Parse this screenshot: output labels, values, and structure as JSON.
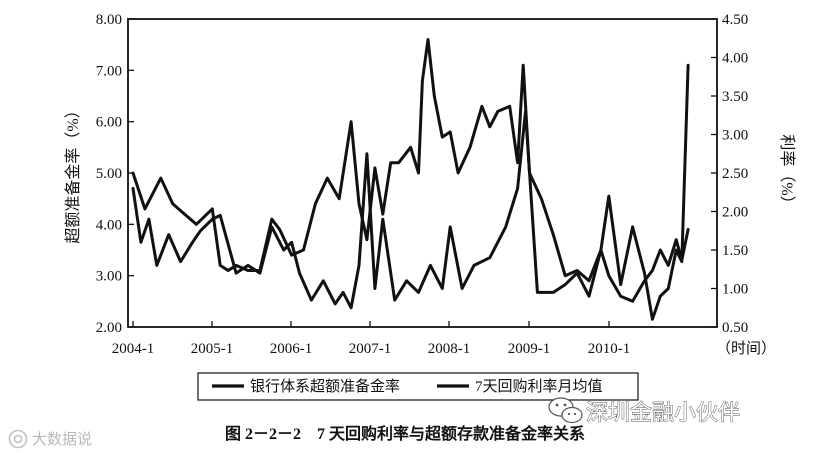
{
  "chart_data": {
    "type": "line",
    "caption": "图 2－2－2　7 天回购利率与超额存款准备金率关系",
    "ylabel": "超额准备金率（%）",
    "y2label": "利率（%）",
    "xlabel": "（时间）",
    "ylim": [
      2.0,
      8.0
    ],
    "y2lim": [
      0.5,
      4.5
    ],
    "y_ticks": [
      "2.00",
      "3.00",
      "4.00",
      "5.00",
      "6.00",
      "7.00",
      "8.00"
    ],
    "y2_ticks": [
      "0.50",
      "1.00",
      "1.50",
      "2.00",
      "2.50",
      "3.00",
      "3.50",
      "4.00",
      "4.50"
    ],
    "x_ticks": [
      "2004-1",
      "2005-1",
      "2006-1",
      "2007-1",
      "2008-1",
      "2009-1",
      "2010-1"
    ],
    "legend": {
      "position": "bottom"
    },
    "series": [
      {
        "name": "银行体系超额准备金率",
        "axis": "left",
        "x": [
          2004.0,
          2004.15,
          2004.35,
          2004.5,
          2004.65,
          2004.8,
          2005.0,
          2005.1,
          2005.2,
          2005.3,
          2005.45,
          2005.6,
          2005.75,
          2005.85,
          2006.0,
          2006.15,
          2006.3,
          2006.45,
          2006.6,
          2006.75,
          2006.85,
          2006.95,
          2007.05,
          2007.15,
          2007.25,
          2007.35,
          2007.5,
          2007.6,
          2007.65,
          2007.72,
          2007.8,
          2007.9,
          2008.0,
          2008.1,
          2008.25,
          2008.4,
          2008.5,
          2008.6,
          2008.75,
          2008.85,
          2008.92,
          2009.0,
          2009.15,
          2009.3,
          2009.45,
          2009.6,
          2009.75,
          2009.9,
          2010.0,
          2010.15,
          2010.3,
          2010.45,
          2010.55,
          2010.65,
          2010.75,
          2010.85,
          2010.92,
          2011.0
        ],
        "values": [
          5.0,
          4.3,
          4.9,
          4.4,
          4.2,
          4.0,
          4.3,
          3.2,
          3.1,
          3.2,
          3.1,
          3.1,
          4.1,
          3.9,
          3.4,
          3.5,
          4.4,
          4.9,
          4.5,
          6.0,
          4.4,
          3.7,
          5.1,
          4.2,
          5.2,
          5.2,
          5.5,
          5.0,
          6.8,
          7.6,
          6.5,
          5.7,
          5.8,
          5.0,
          5.5,
          6.3,
          5.9,
          6.2,
          6.3,
          5.2,
          7.1,
          5.0,
          4.5,
          3.8,
          3.0,
          3.1,
          2.9,
          3.5,
          3.0,
          2.6,
          2.5,
          2.9,
          3.1,
          3.5,
          3.2,
          3.7,
          3.3,
          3.9
        ]
      },
      {
        "name": "7天回购利率月均值",
        "axis": "right",
        "x": [
          2004.0,
          2004.1,
          2004.2,
          2004.3,
          2004.45,
          2004.6,
          2004.75,
          2004.85,
          2005.0,
          2005.1,
          2005.3,
          2005.45,
          2005.6,
          2005.75,
          2005.9,
          2006.0,
          2006.1,
          2006.25,
          2006.4,
          2006.55,
          2006.65,
          2006.75,
          2006.85,
          2006.95,
          2007.05,
          2007.15,
          2007.3,
          2007.45,
          2007.6,
          2007.75,
          2007.9,
          2008.0,
          2008.15,
          2008.3,
          2008.5,
          2008.7,
          2008.85,
          2008.95,
          2009.1,
          2009.3,
          2009.45,
          2009.6,
          2009.75,
          2009.9,
          2010.0,
          2010.15,
          2010.3,
          2010.45,
          2010.55,
          2010.65,
          2010.75,
          2010.85,
          2010.92,
          2011.0
        ],
        "values": [
          2.3,
          1.6,
          1.9,
          1.3,
          1.7,
          1.35,
          1.6,
          1.75,
          1.9,
          1.95,
          1.2,
          1.3,
          1.2,
          1.8,
          1.5,
          1.6,
          1.2,
          0.85,
          1.1,
          0.8,
          0.95,
          0.75,
          1.3,
          2.75,
          1.0,
          1.9,
          0.85,
          1.1,
          0.95,
          1.3,
          1.0,
          1.8,
          1.0,
          1.3,
          1.4,
          1.8,
          2.3,
          3.3,
          0.95,
          0.95,
          1.05,
          1.2,
          0.9,
          1.5,
          2.2,
          1.05,
          1.8,
          1.2,
          0.6,
          0.9,
          1.0,
          1.5,
          1.35,
          3.9
        ]
      }
    ]
  },
  "watermarks": {
    "left_text": "大数据说",
    "right_text": "深圳金融小伙伴",
    "left_icon": "camera-icon",
    "right_icon": "wechat-icon"
  }
}
